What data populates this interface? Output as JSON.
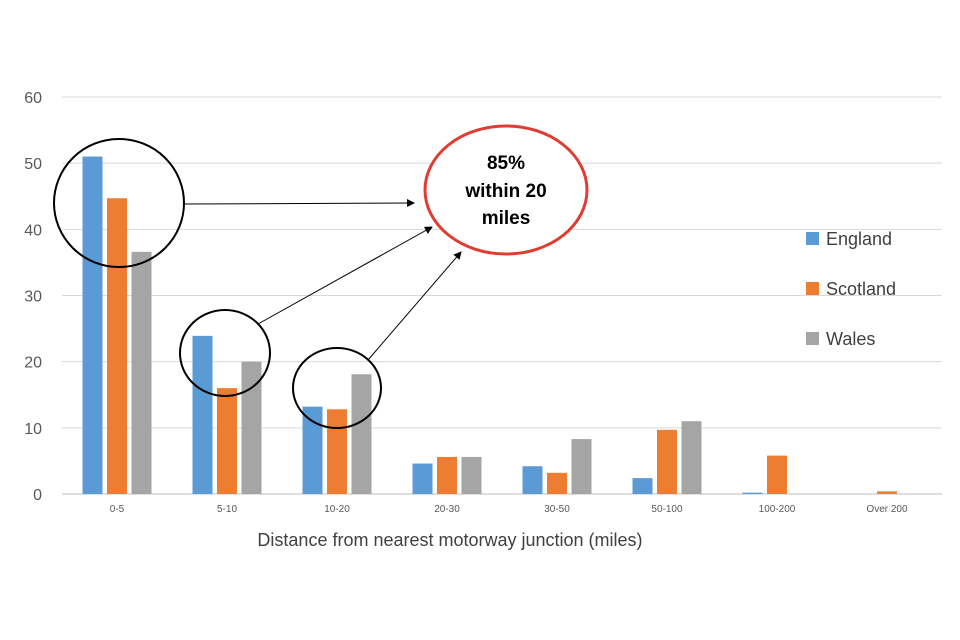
{
  "chart_data": {
    "type": "bar",
    "categories": [
      "0-5",
      "5-10",
      "10-20",
      "20-30",
      "30-50",
      "50-100",
      "100-200",
      "Over 200"
    ],
    "series": [
      {
        "name": "England",
        "color": "#5B9BD5",
        "values": [
          51,
          23.9,
          13.2,
          4.6,
          4.2,
          2.4,
          0.2,
          0
        ]
      },
      {
        "name": "Scotland",
        "color": "#ED7D31",
        "values": [
          44.7,
          16,
          12.8,
          5.6,
          3.2,
          9.7,
          5.8,
          0.4
        ]
      },
      {
        "name": "Wales",
        "color": "#A5A5A5",
        "values": [
          36.6,
          20,
          18.1,
          5.6,
          8.3,
          11,
          0,
          0
        ]
      }
    ],
    "title": "",
    "xlabel": "Distance from  nearest motorway junction (miles)",
    "ylabel": "",
    "ylim": [
      0,
      60
    ],
    "yticks": [
      0,
      10,
      20,
      30,
      40,
      50,
      60
    ],
    "grid": true,
    "legend_position": "right",
    "annotation": {
      "lines": [
        "85%",
        "within 20",
        "miles"
      ],
      "border_color": "#E03C31"
    }
  }
}
